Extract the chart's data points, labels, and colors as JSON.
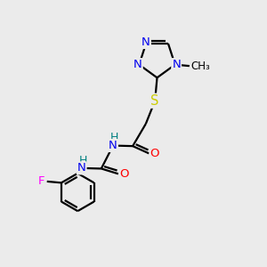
{
  "bg_color": "#ebebeb",
  "atom_colors": {
    "C": "#000000",
    "N": "#0000ee",
    "O": "#ff0000",
    "S": "#cccc00",
    "F": "#ff00ff",
    "H": "#008080"
  },
  "bond_color": "#000000",
  "bond_width": 1.6,
  "figsize": [
    3.0,
    3.0
  ],
  "dpi": 100
}
